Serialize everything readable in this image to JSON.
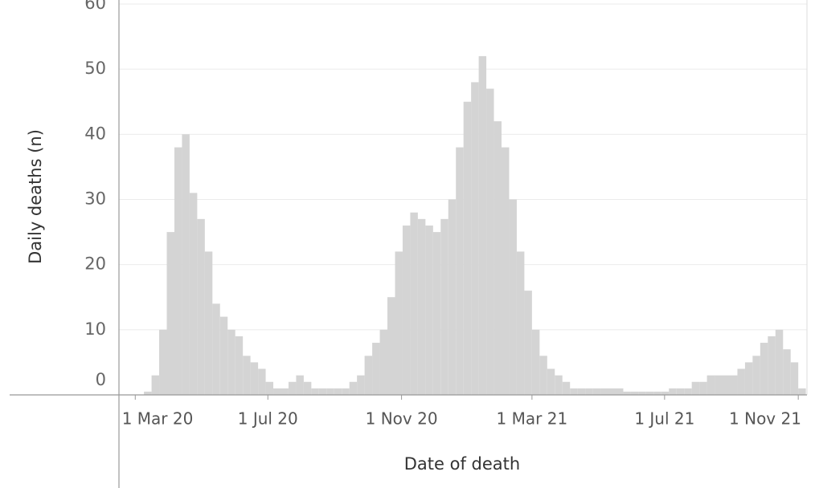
{
  "chart_data": {
    "type": "bar",
    "x_label": "Date of death",
    "y_label": "Daily deaths (n)",
    "x": [
      "2020-03-09",
      "2020-03-16",
      "2020-03-23",
      "2020-03-30",
      "2020-04-06",
      "2020-04-13",
      "2020-04-20",
      "2020-04-27",
      "2020-05-04",
      "2020-05-11",
      "2020-05-18",
      "2020-05-25",
      "2020-06-01",
      "2020-06-08",
      "2020-06-15",
      "2020-06-22",
      "2020-06-29",
      "2020-07-06",
      "2020-07-13",
      "2020-07-20",
      "2020-07-27",
      "2020-08-03",
      "2020-08-10",
      "2020-08-17",
      "2020-08-24",
      "2020-08-31",
      "2020-09-07",
      "2020-09-14",
      "2020-09-21",
      "2020-09-28",
      "2020-10-05",
      "2020-10-12",
      "2020-10-19",
      "2020-10-26",
      "2020-11-02",
      "2020-11-09",
      "2020-11-16",
      "2020-11-23",
      "2020-11-30",
      "2020-12-07",
      "2020-12-14",
      "2020-12-21",
      "2020-12-28",
      "2021-01-04",
      "2021-01-11",
      "2021-01-18",
      "2021-01-25",
      "2021-02-01",
      "2021-02-08",
      "2021-02-15",
      "2021-02-22",
      "2021-03-01",
      "2021-03-08",
      "2021-03-15",
      "2021-03-22",
      "2021-03-29",
      "2021-04-05",
      "2021-04-12",
      "2021-04-19",
      "2021-04-26",
      "2021-05-03",
      "2021-05-10",
      "2021-05-17",
      "2021-05-24",
      "2021-05-31",
      "2021-06-07",
      "2021-06-14",
      "2021-06-21",
      "2021-06-28",
      "2021-07-05",
      "2021-07-12",
      "2021-07-19",
      "2021-07-26",
      "2021-08-02",
      "2021-08-09",
      "2021-08-16",
      "2021-08-23",
      "2021-08-30",
      "2021-09-06",
      "2021-09-13",
      "2021-09-20",
      "2021-09-27",
      "2021-10-04",
      "2021-10-11",
      "2021-10-18",
      "2021-10-25",
      "2021-11-01"
    ],
    "values": [
      0.5,
      3,
      10,
      25,
      38,
      40,
      31,
      27,
      22,
      14,
      12,
      10,
      9,
      6,
      5,
      4,
      2,
      1,
      1,
      2,
      3,
      2,
      1,
      1,
      1,
      1,
      1,
      2,
      3,
      6,
      8,
      10,
      15,
      22,
      26,
      28,
      27,
      26,
      25,
      27,
      30,
      38,
      45,
      48,
      52,
      47,
      42,
      38,
      30,
      22,
      16,
      10,
      6,
      4,
      3,
      2,
      1,
      1,
      1,
      1,
      1,
      1,
      1,
      0.5,
      0.5,
      0.5,
      0.5,
      0.5,
      0.5,
      1,
      1,
      1,
      2,
      2,
      3,
      3,
      3,
      3,
      4,
      5,
      6,
      8,
      9,
      10,
      7,
      5,
      1
    ],
    "color": "#d4d4d4",
    "xlim": [
      "2020-02-15",
      "2021-11-09"
    ],
    "xticks": [
      {
        "value": "2020-03-01",
        "label": "1 Mar 20"
      },
      {
        "value": "2020-07-01",
        "label": "1 Jul 20"
      },
      {
        "value": "2020-11-01",
        "label": "1 Nov 20"
      },
      {
        "value": "2021-03-01",
        "label": "1 Mar 21"
      },
      {
        "value": "2021-07-01",
        "label": "1 Jul 21"
      },
      {
        "value": "2021-11-01",
        "label": "1 Nov 21"
      }
    ],
    "ylim": [
      0,
      60
    ],
    "yticks": [
      0,
      10,
      20,
      30,
      40,
      50,
      60
    ],
    "grid": true
  }
}
